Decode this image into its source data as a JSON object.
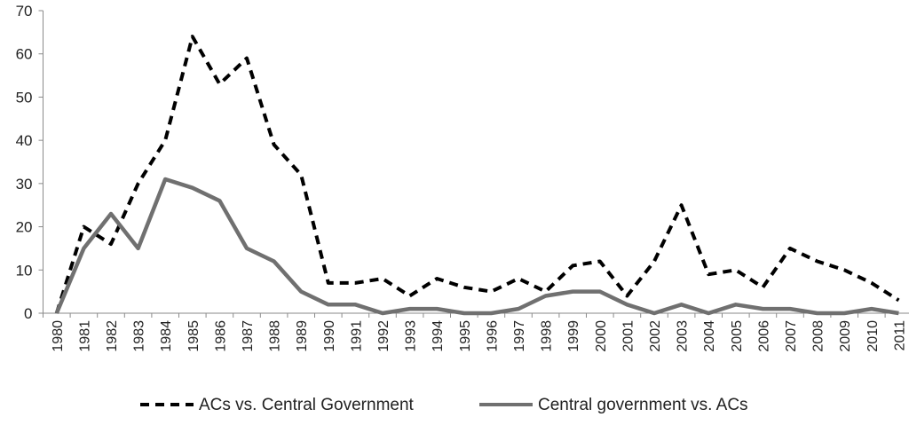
{
  "chart_data": {
    "type": "line",
    "title": "",
    "xlabel": "",
    "ylabel": "",
    "ylim": [
      0,
      70
    ],
    "yticks": [
      0,
      10,
      20,
      30,
      40,
      50,
      60,
      70
    ],
    "grid": false,
    "legend_position": "bottom",
    "categories": [
      "1980",
      "1981",
      "1982",
      "1983",
      "1984",
      "1985",
      "1986",
      "1987",
      "1988",
      "1989",
      "1990",
      "1991",
      "1992",
      "1993",
      "1994",
      "1995",
      "1996",
      "1997",
      "1998",
      "1999",
      "2000",
      "2001",
      "2002",
      "2003",
      "2004",
      "2005",
      "2006",
      "2007",
      "2008",
      "2009",
      "2010",
      "2011"
    ],
    "series": [
      {
        "name": "ACs vs. Central Government",
        "style": "dashed",
        "color": "#000000",
        "values": [
          0,
          20,
          16,
          30,
          40,
          64,
          53,
          59,
          39,
          32,
          7,
          7,
          8,
          4,
          8,
          6,
          5,
          8,
          5,
          11,
          12,
          4,
          12,
          25,
          9,
          10,
          6,
          15,
          12,
          10,
          7,
          3
        ]
      },
      {
        "name": "Central government vs. ACs",
        "style": "solid",
        "color": "#707070",
        "values": [
          0,
          15,
          23,
          15,
          31,
          29,
          26,
          15,
          12,
          5,
          2,
          2,
          0,
          1,
          1,
          0,
          0,
          1,
          4,
          5,
          5,
          2,
          0,
          2,
          0,
          2,
          1,
          1,
          0,
          0,
          1,
          0
        ]
      }
    ]
  }
}
